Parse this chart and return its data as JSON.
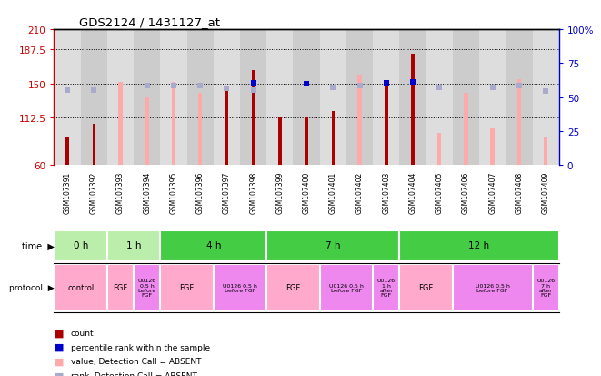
{
  "title": "GDS2124 / 1431127_at",
  "samples": [
    "GSM107391",
    "GSM107392",
    "GSM107393",
    "GSM107394",
    "GSM107395",
    "GSM107396",
    "GSM107397",
    "GSM107398",
    "GSM107399",
    "GSM107400",
    "GSM107401",
    "GSM107402",
    "GSM107403",
    "GSM107404",
    "GSM107405",
    "GSM107406",
    "GSM107407",
    "GSM107408",
    "GSM107409"
  ],
  "red_values": [
    90,
    105,
    null,
    null,
    null,
    null,
    148,
    165,
    113,
    113,
    120,
    null,
    152,
    183,
    null,
    null,
    null,
    null,
    null
  ],
  "pink_values": [
    null,
    null,
    152,
    135,
    152,
    140,
    null,
    null,
    90,
    null,
    null,
    160,
    null,
    null,
    95,
    140,
    100,
    155,
    90
  ],
  "blue_values": [
    null,
    null,
    null,
    null,
    null,
    null,
    null,
    151,
    null,
    150,
    null,
    null,
    151,
    152,
    null,
    null,
    null,
    null,
    null
  ],
  "lightblue_values": [
    143,
    143,
    null,
    148,
    148,
    148,
    145,
    143,
    null,
    null,
    146,
    148,
    null,
    null,
    146,
    null,
    146,
    148,
    142
  ],
  "ylim_left": [
    60,
    210
  ],
  "ylim_right": [
    0,
    100
  ],
  "yticks_left": [
    60,
    112.5,
    150,
    187.5,
    210
  ],
  "yticks_right": [
    0,
    25,
    50,
    75,
    100
  ],
  "dotted_lines": [
    187.5,
    150,
    112.5
  ],
  "time_groups": [
    {
      "label": "0 h",
      "start": 0,
      "end": 2,
      "color": "#BBEEAA"
    },
    {
      "label": "1 h",
      "start": 2,
      "end": 4,
      "color": "#BBEEAA"
    },
    {
      "label": "4 h",
      "start": 4,
      "end": 8,
      "color": "#44CC44"
    },
    {
      "label": "7 h",
      "start": 8,
      "end": 13,
      "color": "#44CC44"
    },
    {
      "label": "12 h",
      "start": 13,
      "end": 19,
      "color": "#44CC44"
    }
  ],
  "protocol_groups": [
    {
      "label": "control",
      "start": 0,
      "end": 2,
      "color": "#FFAACC"
    },
    {
      "label": "FGF",
      "start": 2,
      "end": 3,
      "color": "#FFAACC"
    },
    {
      "label": "U0126\n0.5 h\nbefore\nFGF",
      "start": 3,
      "end": 4,
      "color": "#EE88EE"
    },
    {
      "label": "FGF",
      "start": 4,
      "end": 6,
      "color": "#FFAACC"
    },
    {
      "label": "U0126 0.5 h\nbefore FGF",
      "start": 6,
      "end": 8,
      "color": "#EE88EE"
    },
    {
      "label": "FGF",
      "start": 8,
      "end": 10,
      "color": "#FFAACC"
    },
    {
      "label": "U0126 0.5 h\nbefore FGF",
      "start": 10,
      "end": 12,
      "color": "#EE88EE"
    },
    {
      "label": "U0126\n1 h\nafter\nFGF",
      "start": 12,
      "end": 13,
      "color": "#EE88EE"
    },
    {
      "label": "FGF",
      "start": 13,
      "end": 15,
      "color": "#FFAACC"
    },
    {
      "label": "U0126 0.5 h\nbefore FGF",
      "start": 15,
      "end": 18,
      "color": "#EE88EE"
    },
    {
      "label": "U0126\n7 h\nafter\nFGF",
      "start": 18,
      "end": 19,
      "color": "#EE88EE"
    }
  ],
  "red_color": "#AA0000",
  "pink_color": "#FFAAAA",
  "blue_color": "#0000CC",
  "lightblue_color": "#AAAACC",
  "left_axis_color": "#CC0000",
  "right_axis_color": "#0000CC",
  "col_bg_light": "#DDDDDD",
  "col_bg_dark": "#CCCCCC"
}
